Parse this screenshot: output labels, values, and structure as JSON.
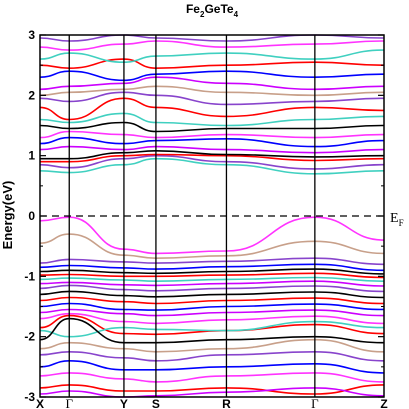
{
  "chart_data": {
    "type": "line",
    "title": {
      "main": "Fe",
      "sub1": "2",
      "mid": "GeTe",
      "sub2": "4"
    },
    "ylabel": "Energy(eV)",
    "ylim": [
      -3,
      3
    ],
    "yticks": [
      "-3",
      "-2",
      "-1",
      "0",
      "1",
      "2",
      "3"
    ],
    "xlim": [
      0,
      1
    ],
    "kpoints": [
      {
        "label": "X",
        "x": 0.0
      },
      {
        "label": "Γ",
        "x": 0.085
      },
      {
        "label": "Y",
        "x": 0.244
      },
      {
        "label": "S",
        "x": 0.337
      },
      {
        "label": "R",
        "x": 0.542
      },
      {
        "label": "Γ",
        "x": 0.799
      },
      {
        "label": "Z",
        "x": 1.0
      }
    ],
    "fermi_level": {
      "energy": 0,
      "label_main": "E",
      "label_sub": "F"
    },
    "series_colors": [
      "#000000",
      "#ff0000",
      "#0000ff",
      "#cc00ff",
      "#40d0c0",
      "#c8a08a",
      "#ff33ff",
      "#8844cc"
    ],
    "bands": [
      {
        "color": "#ff33ff",
        "x": [
          0,
          0.085,
          0.244,
          0.337,
          0.542,
          0.799,
          1
        ],
        "y": [
          -0.08,
          -0.02,
          -0.55,
          -0.62,
          -0.58,
          -0.02,
          -0.4
        ]
      },
      {
        "color": "#c8a08a",
        "x": [
          0,
          0.085,
          0.244,
          0.337,
          0.542,
          0.799,
          1
        ],
        "y": [
          -0.45,
          -0.3,
          -0.65,
          -0.7,
          -0.66,
          -0.42,
          -0.62
        ]
      },
      {
        "color": "#8844cc",
        "x": [
          0,
          0.085,
          0.244,
          0.337,
          0.542,
          0.799,
          1
        ],
        "y": [
          -0.78,
          -0.72,
          -0.76,
          -0.78,
          -0.75,
          -0.7,
          -0.8
        ]
      },
      {
        "color": "#0000ff",
        "x": [
          0,
          0.085,
          0.244,
          0.337,
          0.542,
          0.799,
          1
        ],
        "y": [
          -0.85,
          -0.82,
          -0.86,
          -0.88,
          -0.84,
          -0.8,
          -0.9
        ]
      },
      {
        "color": "#000000",
        "x": [
          0,
          0.085,
          0.244,
          0.337,
          0.542,
          0.799,
          1
        ],
        "y": [
          -0.92,
          -0.9,
          -0.94,
          -0.95,
          -0.92,
          -0.88,
          -0.96
        ]
      },
      {
        "color": "#ff0000",
        "x": [
          0,
          0.085,
          0.244,
          0.337,
          0.542,
          0.799,
          1
        ],
        "y": [
          -0.98,
          -0.97,
          -1.0,
          -1.0,
          -0.98,
          -0.95,
          -1.02
        ]
      },
      {
        "color": "#40d0c0",
        "x": [
          0,
          0.085,
          0.244,
          0.337,
          0.542,
          0.799,
          1
        ],
        "y": [
          -1.05,
          -1.03,
          -1.06,
          -1.08,
          -1.05,
          -1.02,
          -1.08
        ]
      },
      {
        "color": "#cc00ff",
        "x": [
          0,
          0.085,
          0.244,
          0.337,
          0.542,
          0.799,
          1
        ],
        "y": [
          -1.12,
          -1.1,
          -1.14,
          -1.15,
          -1.12,
          -1.08,
          -1.16
        ]
      },
      {
        "color": "#8844cc",
        "x": [
          0,
          0.085,
          0.244,
          0.337,
          0.542,
          0.799,
          1
        ],
        "y": [
          -1.2,
          -1.15,
          -1.22,
          -1.24,
          -1.2,
          -1.16,
          -1.25
        ]
      },
      {
        "color": "#000000",
        "x": [
          0,
          0.085,
          0.244,
          0.337,
          0.542,
          0.799,
          1
        ],
        "y": [
          -1.3,
          -1.25,
          -1.32,
          -1.34,
          -1.3,
          -1.26,
          -1.35
        ]
      },
      {
        "color": "#ff0000",
        "x": [
          0,
          0.085,
          0.244,
          0.337,
          0.542,
          0.799,
          1
        ],
        "y": [
          -1.4,
          -1.35,
          -1.42,
          -1.45,
          -1.4,
          -1.36,
          -1.45
        ]
      },
      {
        "color": "#0000ff",
        "x": [
          0,
          0.085,
          0.244,
          0.337,
          0.542,
          0.799,
          1
        ],
        "y": [
          -1.5,
          -1.45,
          -1.55,
          -1.56,
          -1.5,
          -1.46,
          -1.55
        ]
      },
      {
        "color": "#cc00ff",
        "x": [
          0,
          0.085,
          0.244,
          0.337,
          0.542,
          0.799,
          1
        ],
        "y": [
          -1.6,
          -1.55,
          -1.62,
          -1.65,
          -1.6,
          -1.56,
          -1.65
        ]
      },
      {
        "color": "#ff33ff",
        "x": [
          0,
          0.085,
          0.244,
          0.337,
          0.542,
          0.799,
          1
        ],
        "y": [
          -1.7,
          -1.62,
          -1.75,
          -1.78,
          -1.72,
          -1.66,
          -1.78
        ]
      },
      {
        "color": "#ff0000",
        "x": [
          0,
          0.085,
          0.244,
          0.337,
          0.542,
          0.799,
          1
        ],
        "y": [
          -1.85,
          -1.65,
          -1.95,
          -1.96,
          -1.9,
          -1.8,
          -1.95
        ]
      },
      {
        "color": "#40d0c0",
        "x": [
          0,
          0.085,
          0.244,
          0.337,
          0.542,
          0.799,
          1
        ],
        "y": [
          -1.9,
          -2.0,
          -1.85,
          -1.88,
          -1.9,
          -1.75,
          -1.85
        ]
      },
      {
        "color": "#000000",
        "x": [
          0,
          0.085,
          0.244,
          0.337,
          0.542,
          0.799,
          1
        ],
        "y": [
          -2.05,
          -1.7,
          -2.1,
          -2.1,
          -2.05,
          -2.0,
          -2.1
        ]
      },
      {
        "color": "#c8a08a",
        "x": [
          0,
          0.085,
          0.244,
          0.337,
          0.542,
          0.799,
          1
        ],
        "y": [
          -2.2,
          -2.1,
          -2.2,
          -2.25,
          -2.2,
          -2.05,
          -2.25
        ]
      },
      {
        "color": "#8844cc",
        "x": [
          0,
          0.085,
          0.244,
          0.337,
          0.542,
          0.799,
          1
        ],
        "y": [
          -2.3,
          -2.25,
          -2.35,
          -2.4,
          -2.3,
          -2.25,
          -2.4
        ]
      },
      {
        "color": "#0000ff",
        "x": [
          0,
          0.085,
          0.244,
          0.337,
          0.542,
          0.799,
          1
        ],
        "y": [
          -2.5,
          -2.4,
          -2.55,
          -2.55,
          -2.5,
          -2.45,
          -2.6
        ]
      },
      {
        "color": "#ff33ff",
        "x": [
          0,
          0.085,
          0.244,
          0.337,
          0.542,
          0.799,
          1
        ],
        "y": [
          -2.65,
          -2.6,
          -2.7,
          -2.75,
          -2.65,
          -2.6,
          -2.75
        ]
      },
      {
        "color": "#ff0000",
        "x": [
          0,
          0.085,
          0.244,
          0.337,
          0.542,
          0.799,
          1
        ],
        "y": [
          -2.85,
          -2.8,
          -2.9,
          -2.9,
          -2.85,
          -2.95,
          -2.8
        ]
      },
      {
        "color": "#cc00ff",
        "x": [
          0,
          0.085,
          0.244,
          0.337,
          0.542,
          0.799,
          1
        ],
        "y": [
          -2.95,
          -2.9,
          -3.0,
          -2.98,
          -2.92,
          -2.85,
          -2.98
        ]
      },
      {
        "color": "#40d0c0",
        "x": [
          0,
          0.085,
          0.244,
          0.337,
          0.542,
          0.799,
          1
        ],
        "y": [
          0.75,
          0.72,
          0.85,
          0.95,
          0.85,
          0.7,
          0.75
        ]
      },
      {
        "color": "#8844cc",
        "x": [
          0,
          0.085,
          0.244,
          0.337,
          0.542,
          0.799,
          1
        ],
        "y": [
          0.85,
          0.8,
          0.95,
          1.0,
          0.9,
          0.78,
          0.85
        ]
      },
      {
        "color": "#ff0000",
        "x": [
          0,
          0.085,
          0.244,
          0.337,
          0.542,
          0.799,
          1
        ],
        "y": [
          0.9,
          0.9,
          1.0,
          1.02,
          1.0,
          0.92,
          0.95
        ]
      },
      {
        "color": "#000000",
        "x": [
          0,
          0.085,
          0.244,
          0.337,
          0.542,
          0.799,
          1
        ],
        "y": [
          0.95,
          0.95,
          1.05,
          1.08,
          1.02,
          0.98,
          1.0
        ]
      },
      {
        "color": "#cc00ff",
        "x": [
          0,
          0.085,
          0.244,
          0.337,
          0.542,
          0.799,
          1
        ],
        "y": [
          1.1,
          1.15,
          1.1,
          1.15,
          1.1,
          1.05,
          1.1
        ]
      },
      {
        "color": "#0000ff",
        "x": [
          0,
          0.085,
          0.244,
          0.337,
          0.542,
          0.799,
          1
        ],
        "y": [
          1.2,
          1.3,
          1.2,
          1.25,
          1.28,
          1.15,
          1.25
        ]
      },
      {
        "color": "#ff33ff",
        "x": [
          0,
          0.085,
          0.244,
          0.337,
          0.542,
          0.799,
          1
        ],
        "y": [
          1.3,
          1.4,
          1.35,
          1.3,
          1.35,
          1.3,
          1.35
        ]
      },
      {
        "color": "#000000",
        "x": [
          0,
          0.085,
          0.244,
          0.337,
          0.542,
          0.799,
          1
        ],
        "y": [
          1.5,
          1.45,
          1.55,
          1.4,
          1.45,
          1.45,
          1.5
        ]
      },
      {
        "color": "#40d0c0",
        "x": [
          0,
          0.085,
          0.244,
          0.337,
          0.542,
          0.799,
          1
        ],
        "y": [
          1.6,
          1.55,
          1.7,
          1.55,
          1.5,
          1.6,
          1.65
        ]
      },
      {
        "color": "#ff0000",
        "x": [
          0,
          0.085,
          0.244,
          0.337,
          0.542,
          0.799,
          1
        ],
        "y": [
          1.8,
          1.6,
          1.95,
          1.8,
          1.65,
          1.8,
          1.75
        ]
      },
      {
        "color": "#8844cc",
        "x": [
          0,
          0.085,
          0.244,
          0.337,
          0.542,
          0.799,
          1
        ],
        "y": [
          1.95,
          1.9,
          2.05,
          2.0,
          1.85,
          1.9,
          1.95
        ]
      },
      {
        "color": "#c8a08a",
        "x": [
          0,
          0.085,
          0.244,
          0.337,
          0.542,
          0.799,
          1
        ],
        "y": [
          2.0,
          2.05,
          2.1,
          2.15,
          2.05,
          2.0,
          2.05
        ]
      },
      {
        "color": "#cc00ff",
        "x": [
          0,
          0.085,
          0.244,
          0.337,
          0.542,
          0.799,
          1
        ],
        "y": [
          2.1,
          2.15,
          2.2,
          2.3,
          2.2,
          2.1,
          2.15
        ]
      },
      {
        "color": "#0000ff",
        "x": [
          0,
          0.085,
          0.244,
          0.337,
          0.542,
          0.799,
          1
        ],
        "y": [
          2.3,
          2.4,
          2.25,
          2.35,
          2.4,
          2.3,
          2.35
        ]
      },
      {
        "color": "#ff0000",
        "x": [
          0,
          0.085,
          0.244,
          0.337,
          0.542,
          0.799,
          1
        ],
        "y": [
          2.5,
          2.45,
          2.6,
          2.45,
          2.5,
          2.55,
          2.5
        ]
      },
      {
        "color": "#40d0c0",
        "x": [
          0,
          0.085,
          0.244,
          0.337,
          0.542,
          0.799,
          1
        ],
        "y": [
          2.6,
          2.7,
          2.55,
          2.65,
          2.7,
          2.6,
          2.75
        ]
      },
      {
        "color": "#ff33ff",
        "x": [
          0,
          0.085,
          0.244,
          0.337,
          0.542,
          0.799,
          1
        ],
        "y": [
          2.8,
          2.75,
          2.85,
          2.9,
          2.8,
          2.85,
          2.9
        ]
      },
      {
        "color": "#8844cc",
        "x": [
          0,
          0.085,
          0.244,
          0.337,
          0.542,
          0.799,
          1
        ],
        "y": [
          2.95,
          2.9,
          3.0,
          2.95,
          2.9,
          3.0,
          2.95
        ]
      }
    ]
  }
}
